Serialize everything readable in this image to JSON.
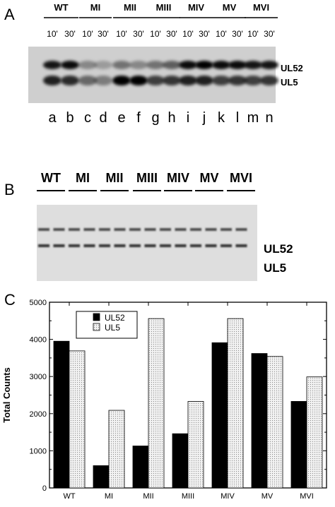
{
  "panelA": {
    "letter": "A",
    "groups": [
      "WT",
      "MI",
      "MII",
      "MIII",
      "MIV",
      "MV",
      "MVI"
    ],
    "times": [
      "10'",
      "30'"
    ],
    "lanes": [
      "a",
      "b",
      "c",
      "d",
      "e",
      "f",
      "g",
      "h",
      "i",
      "j",
      "k",
      "l",
      "m",
      "n"
    ],
    "bands": [
      "UL52",
      "UL5"
    ],
    "intensity_ul52": [
      0.9,
      0.95,
      0.35,
      0.25,
      0.45,
      0.35,
      0.45,
      0.55,
      0.95,
      1.0,
      0.95,
      0.95,
      0.9,
      0.9
    ],
    "intensity_ul5": [
      0.85,
      0.8,
      0.5,
      0.4,
      1.0,
      1.0,
      0.7,
      0.75,
      0.85,
      0.85,
      0.7,
      0.75,
      0.7,
      0.75
    ]
  },
  "panelB": {
    "letter": "B",
    "groups": [
      "WT",
      "MI",
      "MII",
      "MIII",
      "MIV",
      "MV",
      "MVI"
    ],
    "bands": [
      "UL52",
      "UL5"
    ]
  },
  "panelC": {
    "letter": "C",
    "chart_data": {
      "type": "bar",
      "categories": [
        "WT",
        "MI",
        "MII",
        "MIII",
        "MIV",
        "MV",
        "MVI"
      ],
      "series": [
        {
          "name": "UL52",
          "values": [
            3950,
            600,
            1130,
            1460,
            3910,
            3620,
            2330
          ],
          "color": "#000000"
        },
        {
          "name": "UL5",
          "values": [
            3690,
            2090,
            4560,
            2330,
            4560,
            3540,
            2990
          ],
          "color": "#d9d9d9"
        }
      ],
      "ylabel": "Total Counts",
      "ylim": [
        0,
        5000
      ],
      "yticks": [
        0,
        1000,
        2000,
        3000,
        4000,
        5000
      ],
      "legend_position": "top-left"
    }
  }
}
